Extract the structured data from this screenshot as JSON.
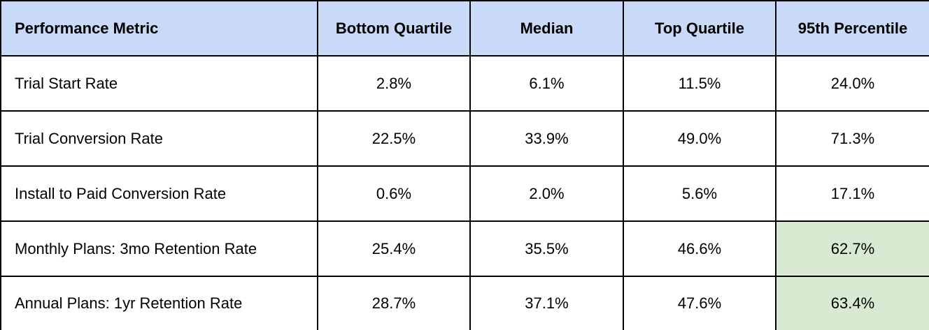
{
  "table": {
    "header": [
      "Performance Metric",
      "Bottom Quartile",
      "Median",
      "Top Quartile",
      "95th Percentile"
    ],
    "rows": [
      [
        "Trial Start Rate",
        "2.8%",
        "6.1%",
        "11.5%",
        "24.0%"
      ],
      [
        "Trial Conversion Rate",
        "22.5%",
        "33.9%",
        "49.0%",
        "71.3%"
      ],
      [
        "Install to Paid Conversion Rate",
        "0.6%",
        "2.0%",
        "5.6%",
        "17.1%"
      ],
      [
        "Monthly Plans: 3mo Retention Rate",
        "25.4%",
        "35.5%",
        "46.6%",
        "62.7%"
      ],
      [
        "Annual Plans: 1yr Retention Rate",
        "28.7%",
        "37.1%",
        "47.6%",
        "63.4%"
      ]
    ]
  }
}
